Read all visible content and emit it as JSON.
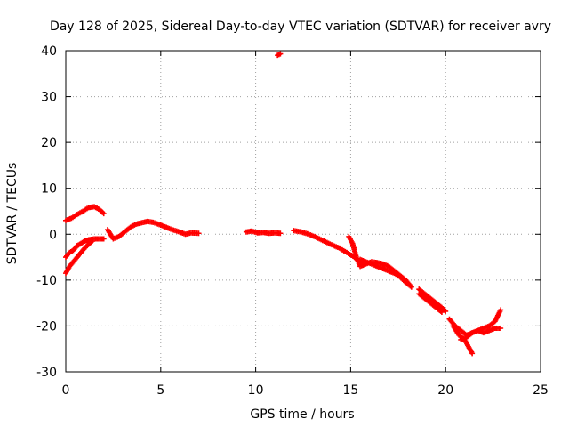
{
  "chart_data": {
    "type": "scatter",
    "title": "Day 128 of 2025, Sidereal Day-to-day VTEC variation (SDTVAR) for receiver avry",
    "xlabel": "GPS time / hours",
    "ylabel": "SDTVAR / TECUs",
    "xlim": [
      0,
      25
    ],
    "ylim": [
      -30,
      40
    ],
    "xticks": [
      0,
      5,
      10,
      15,
      20,
      25
    ],
    "yticks": [
      -30,
      -20,
      -10,
      0,
      10,
      20,
      30,
      40
    ],
    "grid": true,
    "marker": "plus",
    "color": "#ff0000",
    "series": [
      {
        "name": "arc-a",
        "x": [
          0.0,
          0.3,
          0.6,
          0.9,
          1.2,
          1.5,
          1.8,
          2.0
        ],
        "y": [
          3.0,
          3.5,
          4.3,
          5.0,
          5.8,
          6.0,
          5.3,
          4.5
        ]
      },
      {
        "name": "arc-b",
        "x": [
          0.0,
          0.2,
          0.4,
          0.6,
          0.8,
          1.0,
          1.2,
          1.5,
          1.8,
          2.0
        ],
        "y": [
          -5.0,
          -4.0,
          -3.5,
          -2.5,
          -2.0,
          -1.5,
          -1.2,
          -1.0,
          -1.0,
          -1.0
        ]
      },
      {
        "name": "arc-c",
        "x": [
          0.0,
          0.2,
          0.4,
          0.6,
          0.8,
          1.0,
          1.2,
          1.4
        ],
        "y": [
          -8.5,
          -7.0,
          -6.0,
          -5.0,
          -4.0,
          -3.0,
          -2.2,
          -1.5
        ]
      },
      {
        "name": "arc-d",
        "x": [
          2.2,
          2.5,
          2.8,
          3.1,
          3.4,
          3.7,
          4.0,
          4.3,
          4.6,
          5.0,
          5.3,
          5.6,
          6.0,
          6.3,
          6.6,
          7.0
        ],
        "y": [
          1.0,
          -1.0,
          -0.5,
          0.5,
          1.5,
          2.2,
          2.5,
          2.8,
          2.6,
          2.0,
          1.5,
          1.0,
          0.5,
          0.0,
          0.3,
          0.2
        ]
      },
      {
        "name": "arc-e",
        "x": [
          9.5,
          9.8,
          10.1,
          10.4,
          10.7,
          11.0,
          11.3
        ],
        "y": [
          0.5,
          0.7,
          0.3,
          0.4,
          0.2,
          0.3,
          0.2
        ]
      },
      {
        "name": "outlier",
        "x": [
          11.15,
          11.3
        ],
        "y": [
          39.0,
          39.3
        ]
      },
      {
        "name": "arc-f",
        "x": [
          12.0,
          12.4,
          12.8,
          13.2,
          13.6,
          14.0,
          14.4,
          14.8,
          15.2,
          15.4,
          15.6
        ],
        "y": [
          0.8,
          0.5,
          0.0,
          -0.7,
          -1.5,
          -2.3,
          -3.0,
          -4.0,
          -5.0,
          -5.8,
          -6.5
        ]
      },
      {
        "name": "arc-g",
        "x": [
          14.9,
          15.1,
          15.3,
          15.5,
          15.8,
          16.1,
          16.4,
          16.7,
          17.0,
          17.3,
          17.6,
          17.9,
          18.2
        ],
        "y": [
          -0.5,
          -2.0,
          -5.0,
          -7.0,
          -6.5,
          -6.0,
          -6.2,
          -6.5,
          -7.0,
          -8.0,
          -9.0,
          -10.0,
          -11.5
        ]
      },
      {
        "name": "arc-h",
        "x": [
          15.5,
          15.8,
          16.1,
          16.4,
          16.7,
          17.0,
          17.3,
          17.6,
          17.9,
          18.2
        ],
        "y": [
          -5.5,
          -6.0,
          -6.5,
          -7.0,
          -7.5,
          -8.0,
          -8.5,
          -9.3,
          -10.5,
          -11.5
        ]
      },
      {
        "name": "arc-i",
        "x": [
          18.6,
          18.9,
          19.2,
          19.5,
          19.8,
          20.0
        ],
        "y": [
          -12.0,
          -13.0,
          -14.0,
          -15.0,
          -16.0,
          -16.8
        ]
      },
      {
        "name": "arc-j",
        "x": [
          18.6,
          18.9,
          19.2,
          19.5,
          19.8
        ],
        "y": [
          -13.0,
          -14.0,
          -15.0,
          -16.0,
          -17.0
        ]
      },
      {
        "name": "arc-k",
        "x": [
          20.2,
          20.5,
          20.8,
          21.1,
          21.4,
          21.7,
          22.0,
          22.3,
          22.6,
          22.9
        ],
        "y": [
          -18.5,
          -20.0,
          -21.0,
          -22.0,
          -21.5,
          -21.0,
          -20.5,
          -20.0,
          -19.0,
          -16.5
        ]
      },
      {
        "name": "arc-l",
        "x": [
          20.4,
          20.7,
          21.0,
          21.2,
          21.4
        ],
        "y": [
          -20.0,
          -22.0,
          -23.0,
          -24.5,
          -26.0
        ]
      },
      {
        "name": "arc-m",
        "x": [
          20.8,
          21.1,
          21.4,
          21.7,
          22.0,
          22.3,
          22.6,
          22.9
        ],
        "y": [
          -23.0,
          -22.5,
          -21.5,
          -21.0,
          -21.5,
          -21.0,
          -20.5,
          -20.5
        ]
      }
    ]
  }
}
